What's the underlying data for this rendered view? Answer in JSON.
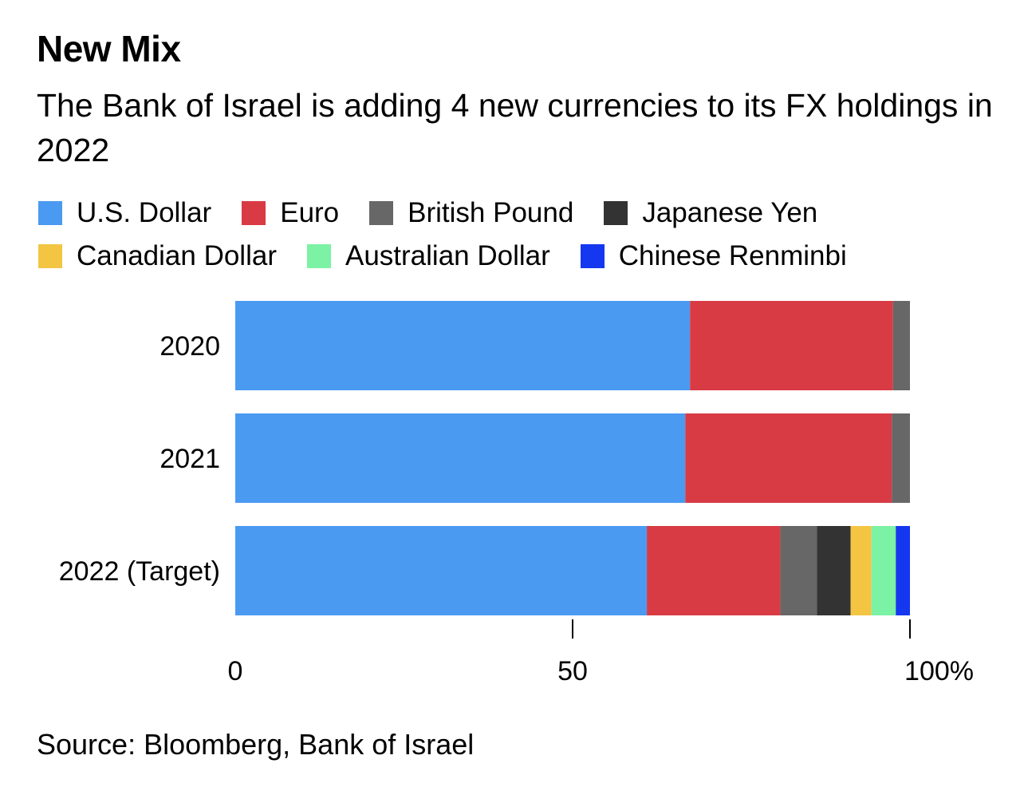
{
  "title": "New Mix",
  "subtitle": "The Bank of Israel is adding 4 new currencies to its FX holdings in 2022",
  "source": "Source: Bloomberg, Bank of Israel",
  "colors": {
    "us_dollar": "#4a9af2",
    "euro": "#d83b44",
    "british_pound": "#676767",
    "japanese_yen": "#333333",
    "canadian_dollar": "#f4c543",
    "australian_dollar": "#7cf2a4",
    "chinese_renminbi": "#1537f0"
  },
  "chart_data": {
    "type": "bar",
    "orientation": "horizontal",
    "stacked": true,
    "categories": [
      "2020",
      "2021",
      "2022 (Target)"
    ],
    "series": [
      {
        "name": "U.S. Dollar",
        "color": "#4a9af2",
        "values": [
          67.4,
          66.7,
          61
        ]
      },
      {
        "name": "Euro",
        "color": "#d83b44",
        "values": [
          30.1,
          30.6,
          19.8
        ]
      },
      {
        "name": "British Pound",
        "color": "#676767",
        "values": [
          2.5,
          2.7,
          5.4
        ]
      },
      {
        "name": "Japanese Yen",
        "color": "#333333",
        "values": [
          0,
          0,
          5
        ]
      },
      {
        "name": "Canadian Dollar",
        "color": "#f4c543",
        "values": [
          0,
          0,
          3.1
        ]
      },
      {
        "name": "Australian Dollar",
        "color": "#7cf2a4",
        "values": [
          0,
          0,
          3.6
        ]
      },
      {
        "name": "Chinese Renminbi",
        "color": "#1537f0",
        "values": [
          0,
          0,
          2.1
        ]
      }
    ],
    "xlim": [
      0,
      100
    ],
    "ticks": [
      {
        "value": 0,
        "label": "0"
      },
      {
        "value": 50,
        "label": "50"
      },
      {
        "value": 100,
        "label": "100%"
      }
    ],
    "grid": false,
    "legend_position": "top"
  }
}
